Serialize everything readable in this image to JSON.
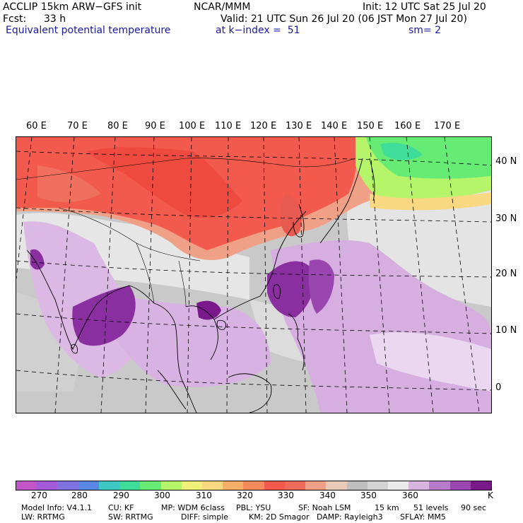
{
  "header": {
    "model": "ACCLIP 15km ARW−GFS init",
    "org": "NCAR/MMM",
    "init": "Init: 12 UTC Sat 25 Jul 20",
    "fcst_label": "Fcst:",
    "fcst_value": "33 h",
    "valid": "Valid: 21 UTC Sun 26 Jul 20 (06 JST Mon 27 Jul 20)",
    "field": "Equivalent potential temperature",
    "level": "at k−index =  51",
    "smoothing": "sm= 2"
  },
  "map": {
    "lon_labels": [
      "60 E",
      "70 E",
      "80 E",
      "90 E",
      "100 E",
      "110 E",
      "120 E",
      "130 E",
      "140 E",
      "150 E",
      "160 E",
      "170 E"
    ],
    "lat_labels": [
      "40 N",
      "30 N",
      "20 N",
      "10 N",
      "0"
    ]
  },
  "colorbar": {
    "colors": [
      "#c256c8",
      "#a25ad8",
      "#7f72e0",
      "#5a86e6",
      "#3dc8c4",
      "#3ede9a",
      "#66ec74",
      "#b6f46a",
      "#eef078",
      "#f8d880",
      "#f8b068",
      "#f58a5c",
      "#f25a4e",
      "#ee6a5a",
      "#f0a086",
      "#e8cab6",
      "#bfbfbf",
      "#d4d4d4",
      "#eaeaea",
      "#d8b4e0",
      "#b97ccc",
      "#9a46b0",
      "#7a1a8a"
    ],
    "labels": [
      "270",
      "280",
      "290",
      "300",
      "310",
      "320",
      "330",
      "340",
      "350",
      "360"
    ],
    "unit": "K"
  },
  "footer": {
    "line1": [
      "Model Info: V4.1.1",
      "CU: KF",
      "MP: WDM 6class",
      "PBL: YSU",
      "SF: Noah LSM",
      "15 km",
      "51 levels",
      "90 sec"
    ],
    "line2": [
      "LW: RRTMG",
      "SW: RRTMG",
      "DIFF: simple",
      "KM: 2D Smagor",
      "DAMP: Rayleigh3",
      "SFLAY: MM5"
    ]
  }
}
